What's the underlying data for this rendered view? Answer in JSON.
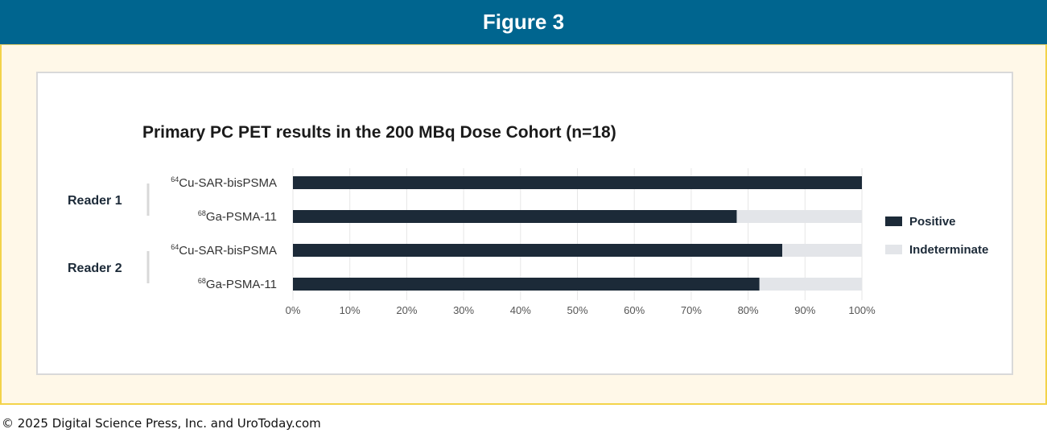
{
  "header": {
    "title": "Figure 3"
  },
  "footer": {
    "copyright": "© 2025 Digital Science Press, Inc. and UroToday.com"
  },
  "colors": {
    "header_bg": "#00658f",
    "frame_bg": "#fff8e8",
    "frame_border": "#f3d34a",
    "positive": "#1c2a38",
    "indeterminate": "#e3e5e9"
  },
  "chart_data": {
    "type": "bar",
    "orientation": "horizontal",
    "stacked": true,
    "title": "Primary PC PET results in the 200 MBq Dose Cohort (n=18)",
    "groups": [
      {
        "label": "Reader 1",
        "categories": [
          {
            "sup": "64",
            "name": "Cu-SAR-bisPSMA"
          },
          {
            "sup": "68",
            "name": "Ga-PSMA-11"
          }
        ]
      },
      {
        "label": "Reader 2",
        "categories": [
          {
            "sup": "64",
            "name": "Cu-SAR-bisPSMA"
          },
          {
            "sup": "68",
            "name": "Ga-PSMA-11"
          }
        ]
      }
    ],
    "series": [
      {
        "name": "Positive",
        "color": "#1c2a38",
        "values": [
          100,
          78,
          86,
          82
        ]
      },
      {
        "name": "Indeterminate",
        "color": "#e3e5e9",
        "values": [
          0,
          22,
          14,
          18
        ]
      }
    ],
    "xticks": [
      "0%",
      "10%",
      "20%",
      "30%",
      "40%",
      "50%",
      "60%",
      "70%",
      "80%",
      "90%",
      "100%"
    ],
    "xlim": [
      0,
      100
    ],
    "grid": true,
    "legend_position": "right"
  }
}
